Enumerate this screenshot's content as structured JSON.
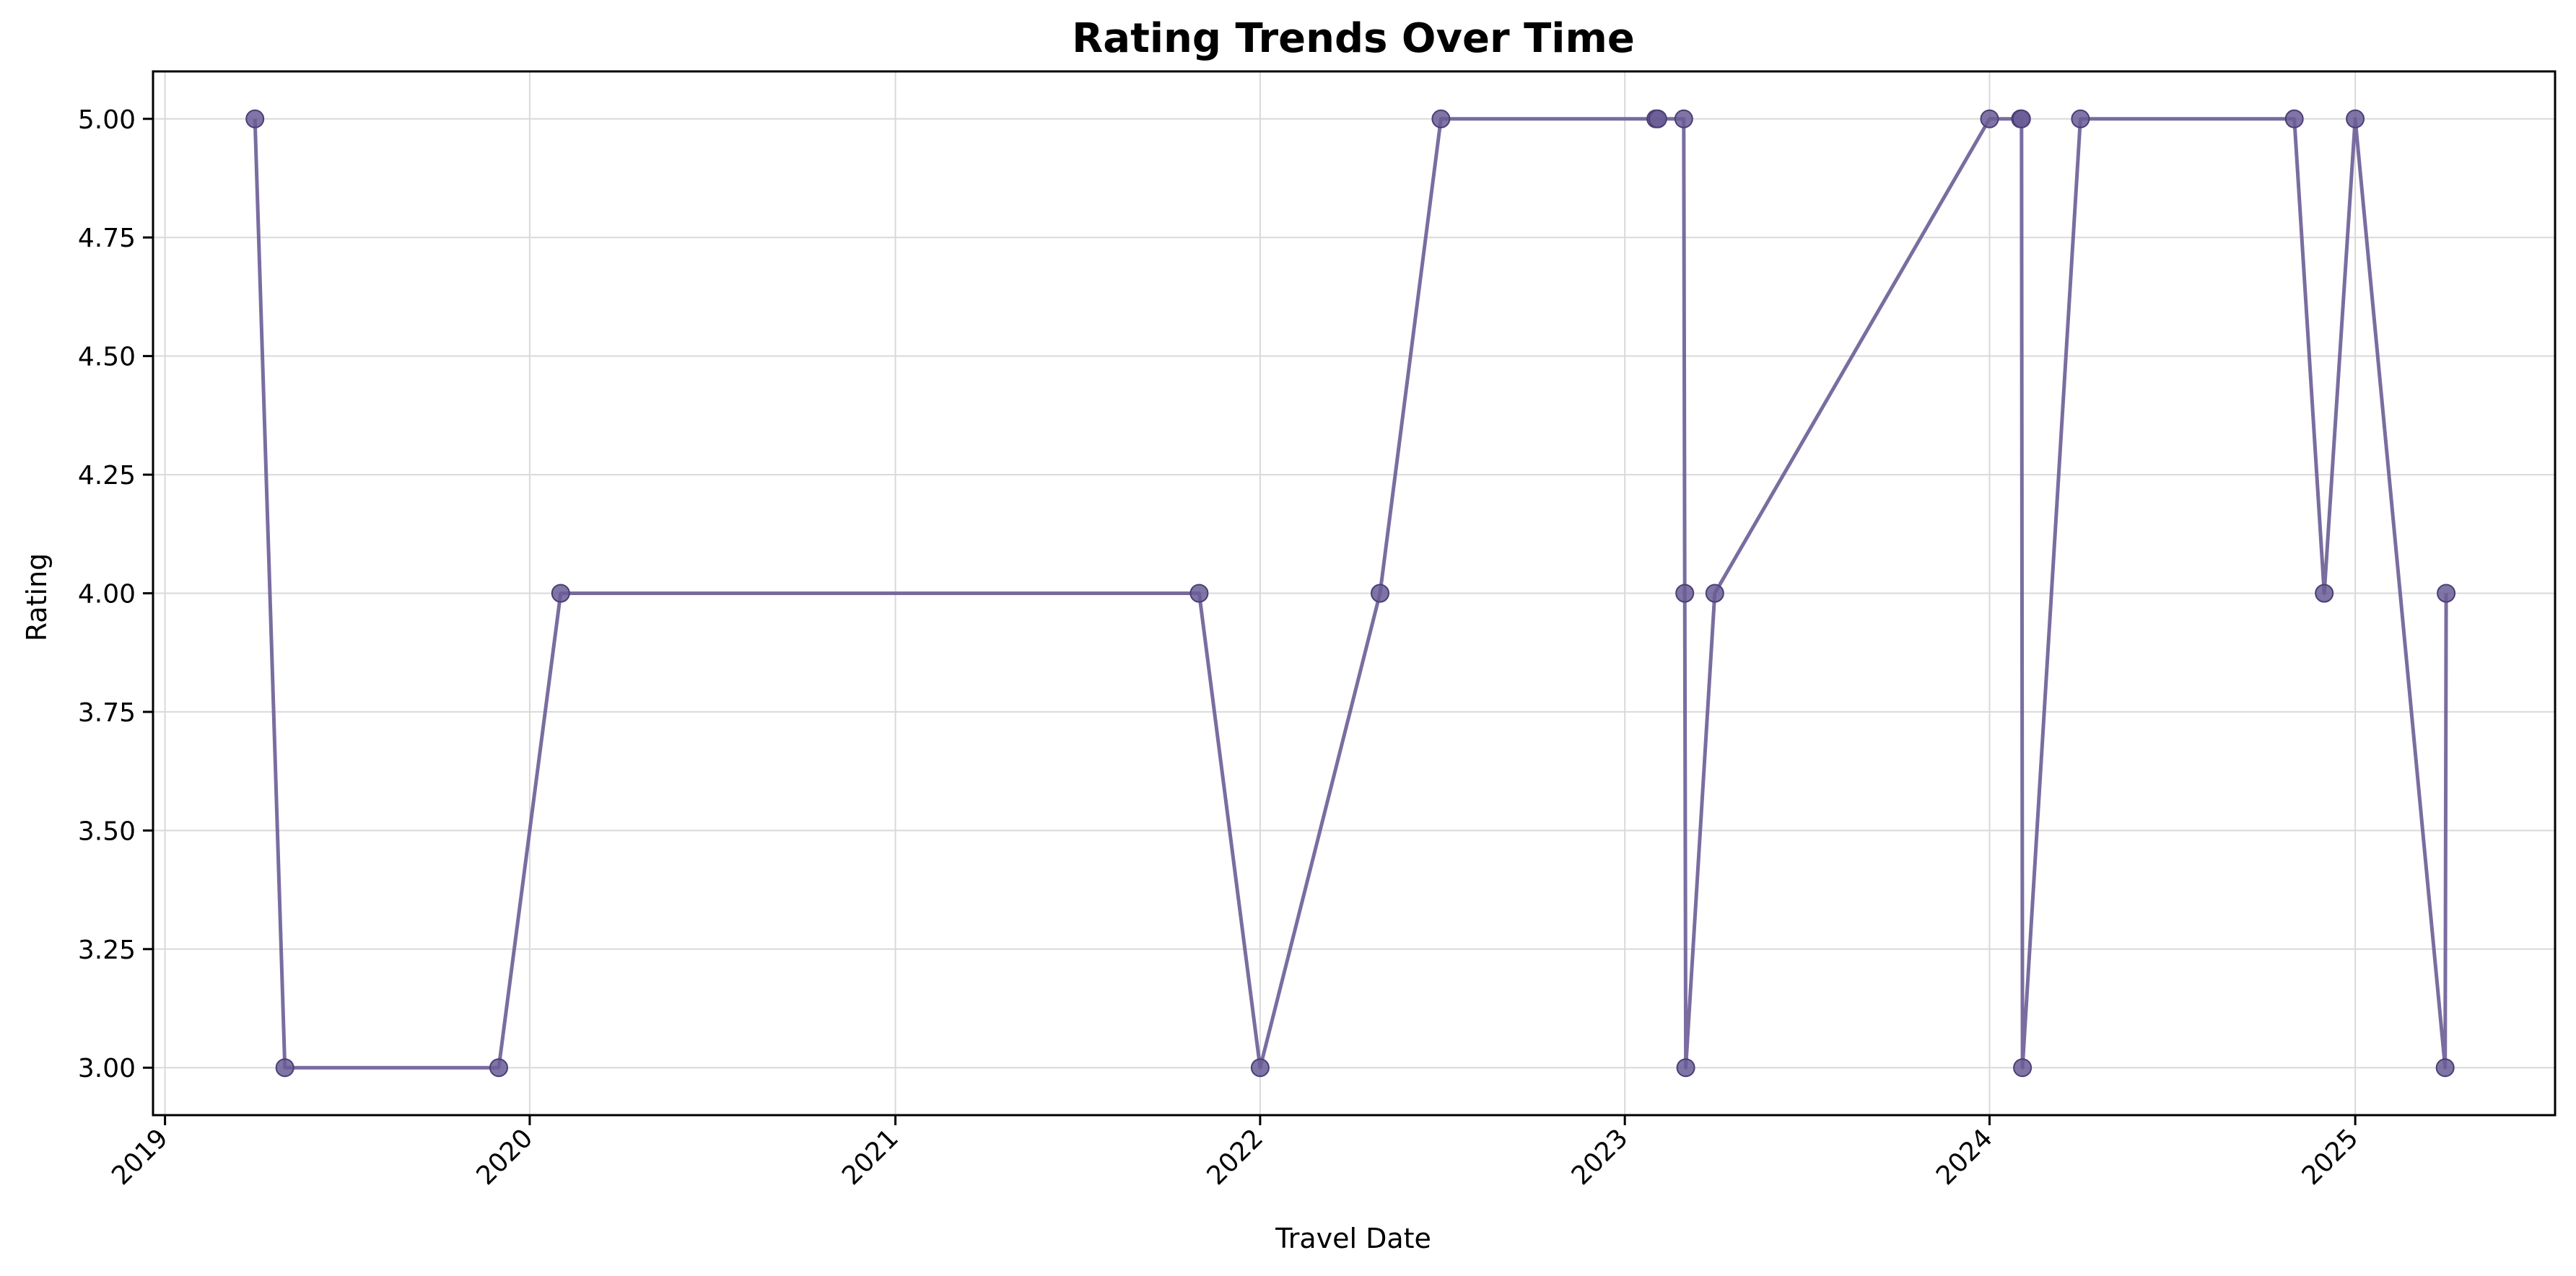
{
  "chart_data": {
    "type": "line",
    "title": "Rating Trends Over Time",
    "xlabel": "Travel Date",
    "ylabel": "Rating",
    "x_axis_type": "date",
    "xlim": [
      "2018-12-20",
      "2025-07-20"
    ],
    "ylim": [
      2.9,
      5.1
    ],
    "x_ticks": [
      "2019",
      "2020",
      "2021",
      "2022",
      "2023",
      "2024",
      "2025"
    ],
    "x_tick_rotation": 45,
    "y_ticks": [
      "3.00",
      "3.25",
      "3.50",
      "3.75",
      "4.00",
      "4.25",
      "4.50",
      "4.75",
      "5.00"
    ],
    "grid": true,
    "legend": "none",
    "series": [
      {
        "color": "#6a5d96",
        "x": [
          "2019-04-01",
          "2019-05-01",
          "2019-12-01",
          "2020-02-01",
          "2021-11-01",
          "2022-01-01",
          "2022-05-01",
          "2022-07-01",
          "2023-02-01",
          "2023-02-03",
          "2023-03-01",
          "2023-03-02",
          "2023-03-03",
          "2023-04-01",
          "2024-01-01",
          "2024-02-01",
          "2024-02-02",
          "2024-02-03",
          "2024-04-01",
          "2024-11-01",
          "2024-12-01",
          "2025-01-01",
          "2025-04-01",
          "2025-04-02"
        ],
        "y": [
          5,
          3,
          3,
          4,
          4,
          3,
          4,
          5,
          5,
          5,
          5,
          4,
          3,
          4,
          5,
          5,
          5,
          3,
          5,
          5,
          4,
          5,
          3,
          4
        ]
      }
    ]
  }
}
